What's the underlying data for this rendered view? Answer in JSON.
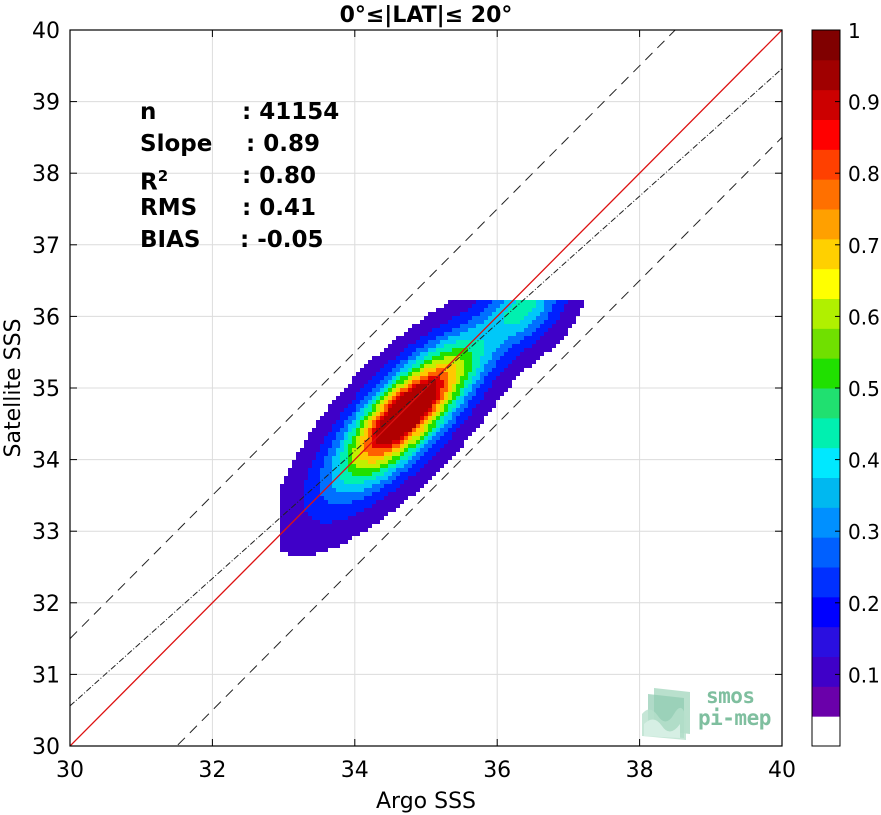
{
  "chart_data": {
    "type": "contour",
    "title": "0°≤|LAT|≤ 20°",
    "xlabel": "Argo SSS",
    "ylabel": "Satellite SSS",
    "xlim": [
      30,
      40
    ],
    "ylim": [
      30,
      40
    ],
    "xticks": [
      30,
      32,
      34,
      36,
      38,
      40
    ],
    "yticks": [
      30,
      31,
      32,
      33,
      34,
      35,
      36,
      37,
      38,
      39,
      40
    ],
    "grid": true,
    "colorbar": {
      "range": [
        0,
        1
      ],
      "ticks": [
        "0.1",
        "0.2",
        "0.3",
        "0.4",
        "0.5",
        "0.6",
        "0.7",
        "0.8",
        "0.9",
        "1"
      ],
      "colors": [
        "#ffffff",
        "#6a00aa",
        "#3f00c8",
        "#2a0fe0",
        "#0000ff",
        "#0030ff",
        "#0060ff",
        "#0090ff",
        "#00b8f0",
        "#00e8ff",
        "#00f0b0",
        "#20e070",
        "#20e000",
        "#70e000",
        "#b0f000",
        "#ffff00",
        "#ffd000",
        "#ffa000",
        "#ff7000",
        "#ff4000",
        "#ff0000",
        "#cc0000",
        "#a00000",
        "#800000"
      ]
    },
    "lines": [
      {
        "name": "identity",
        "style": "solid red",
        "slope": 1,
        "intercept": 0
      },
      {
        "name": "regression",
        "style": "dash-dot",
        "slope": 0.89,
        "intercept": 3.86
      },
      {
        "name": "upper bound",
        "style": "dashed",
        "slope": 1,
        "intercept": 1.5
      },
      {
        "name": "lower bound",
        "style": "dashed",
        "slope": 1,
        "intercept": -1.5
      }
    ],
    "density_peaks": [
      {
        "x": 34.75,
        "y": 34.7,
        "value": 1.0
      },
      {
        "x": 36.4,
        "y": 36.15,
        "value": 0.42
      }
    ],
    "stats": [
      {
        "key": "n",
        "value": ": 41154"
      },
      {
        "key": "Slope",
        "value": ": 0.89"
      },
      {
        "key": "R",
        "sup": "2",
        "value": ": 0.80"
      },
      {
        "key": "RMS",
        "value": ": 0.41"
      },
      {
        "key": "BIAS",
        "value": ": -0.05"
      }
    ],
    "colors": {
      "identity_line": "#dd1111",
      "grid": "#dcdcdc",
      "logo": "#7fbf9f"
    }
  },
  "logo": {
    "line1": "smos",
    "line2": "pi-mep"
  }
}
